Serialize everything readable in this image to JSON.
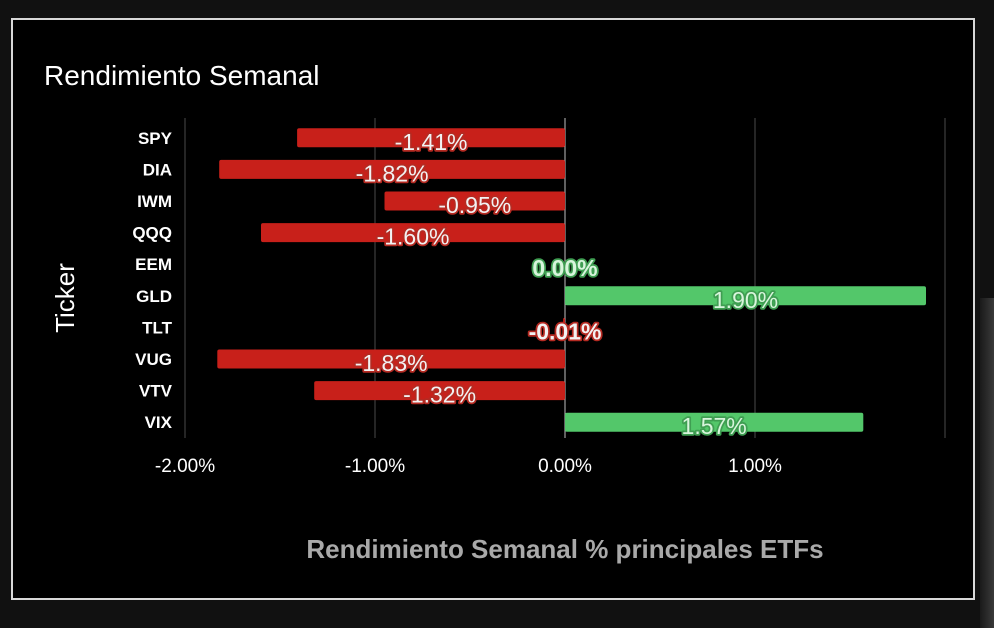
{
  "chart_data": {
    "type": "bar",
    "orientation": "horizontal",
    "title": "Rendimiento Semanal",
    "ylabel": "Ticker",
    "xlabel": "Rendimiento Semanal % principales ETFs",
    "categories": [
      "SPY",
      "DIA",
      "IWM",
      "QQQ",
      "EEM",
      "GLD",
      "TLT",
      "VUG",
      "VTV",
      "VIX"
    ],
    "values": [
      -1.41,
      -1.82,
      -0.95,
      -1.6,
      0.0,
      1.9,
      -0.01,
      -1.83,
      -1.32,
      1.57
    ],
    "labels": [
      "-1.41%",
      "-1.82%",
      "-0.95%",
      "-1.60%",
      "0.00%",
      "1.90%",
      "-0.01%",
      "-1.83%",
      "-1.32%",
      "1.57%"
    ],
    "xlim": [
      -2.0,
      2.0
    ],
    "xticks": [
      -2.0,
      -1.0,
      0.0,
      1.0
    ],
    "xtick_labels": [
      "-2.00%",
      "-1.00%",
      "0.00%",
      "1.00%"
    ],
    "grid": "vertical",
    "legend": "none",
    "colors": {
      "negative": "#c8201a",
      "positive": "#53c76a",
      "label_fill_negative": "#f2f2f2",
      "label_stroke_negative": "#b52a22",
      "label_fill_positive": "#d8f5dc",
      "label_stroke_positive": "#3f9e52",
      "grid": "#4a4a4a",
      "zero_line": "#bfbfbf",
      "background": "#000000"
    }
  }
}
